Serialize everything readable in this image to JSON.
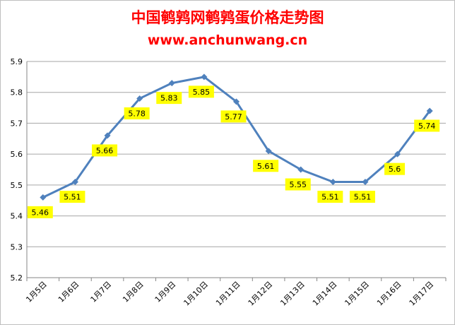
{
  "chart_data": {
    "type": "line",
    "title": "中国鹌鹑网鹌鹑蛋价格走势图",
    "subtitle": "www.anchunwang.cn",
    "categories": [
      "1月5日",
      "1月6日",
      "1月7日",
      "1月8日",
      "1月9日",
      "1月10日",
      "1月11日",
      "1月12日",
      "1月13日",
      "1月14日",
      "1月15日",
      "1月16日",
      "1月17日"
    ],
    "series": [
      {
        "values": [
          5.46,
          5.51,
          5.66,
          5.78,
          5.83,
          5.85,
          5.77,
          5.61,
          5.55,
          5.51,
          5.51,
          5.6,
          5.74
        ]
      }
    ],
    "data_labels": [
      "5.46",
      "5.51",
      "5.66",
      "5.78",
      "5.83",
      "5.85",
      "5.77",
      "5.61",
      "5.55",
      "5.51",
      "5.51",
      "5.6",
      "5.74"
    ],
    "ylim": [
      5.2,
      5.9
    ],
    "yticks": [
      "5.2",
      "5.3",
      "5.4",
      "5.5",
      "5.6",
      "5.7",
      "5.8",
      "5.9"
    ],
    "xlabel": "",
    "ylabel": "",
    "grid": true,
    "legend": "none",
    "colors": {
      "title": "#ff0000",
      "line": "#4f81bd",
      "label_bg": "#ffff00",
      "grid": "#a6a6a6"
    }
  }
}
